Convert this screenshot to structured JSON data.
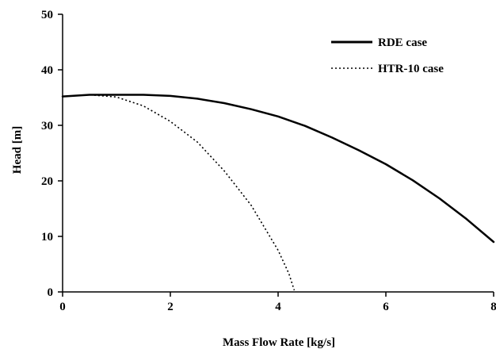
{
  "chart_data": {
    "type": "line",
    "title": "",
    "xlabel": "Mass Flow Rate [kg/s]",
    "ylabel": "Head [m]",
    "xlim": [
      0,
      8
    ],
    "ylim": [
      0,
      50
    ],
    "xticks": [
      "0",
      "2",
      "4",
      "6",
      "8"
    ],
    "yticks": [
      "0",
      "10",
      "20",
      "30",
      "40",
      "50"
    ],
    "grid": false,
    "legend": "top-right",
    "series": [
      {
        "name": "RDE case",
        "style": "solid",
        "x": [
          0,
          0.5,
          1.0,
          1.5,
          2.0,
          2.5,
          3.0,
          3.5,
          4.0,
          4.5,
          5.0,
          5.5,
          6.0,
          6.5,
          7.0,
          7.5,
          8.0
        ],
        "y": [
          35.2,
          35.5,
          35.5,
          35.5,
          35.3,
          34.8,
          34.0,
          32.9,
          31.6,
          29.9,
          27.8,
          25.5,
          23.0,
          20.1,
          16.8,
          13.1,
          9.0
        ]
      },
      {
        "name": "HTR-10 case",
        "style": "dotted",
        "x": [
          0,
          0.5,
          1.0,
          1.5,
          2.0,
          2.5,
          3.0,
          3.5,
          4.0,
          4.2,
          4.3
        ],
        "y": [
          35.2,
          35.5,
          35.1,
          33.5,
          30.7,
          27.0,
          21.8,
          15.6,
          7.5,
          3.3,
          0.3
        ]
      }
    ],
    "colors": {
      "axis": "#000000",
      "series": "#000000"
    }
  }
}
